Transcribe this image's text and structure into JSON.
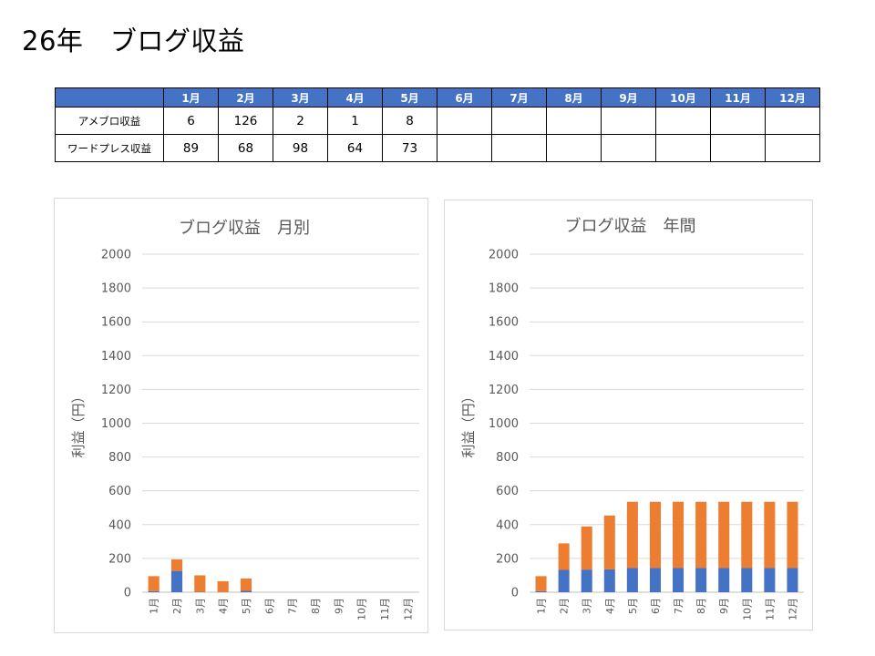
{
  "page": {
    "title": "26年　ブログ収益"
  },
  "table": {
    "columns": [
      "1月",
      "2月",
      "3月",
      "4月",
      "5月",
      "6月",
      "7月",
      "8月",
      "9月",
      "10月",
      "11月",
      "12月"
    ],
    "rows": [
      {
        "label": "アメブロ収益",
        "values": [
          "6",
          "126",
          "2",
          "1",
          "8",
          "",
          "",
          "",
          "",
          "",
          "",
          ""
        ]
      },
      {
        "label": "ワードプレス収益",
        "values": [
          "89",
          "68",
          "98",
          "64",
          "73",
          "",
          "",
          "",
          "",
          "",
          "",
          ""
        ]
      }
    ]
  },
  "chart_data": [
    {
      "type": "bar",
      "stacked": true,
      "title": "ブログ収益　月別",
      "ylabel": "利益（円）",
      "xlabel": "",
      "ylim": [
        0,
        2000
      ],
      "yticks": [
        0,
        200,
        400,
        600,
        800,
        1000,
        1200,
        1400,
        1600,
        1800,
        2000
      ],
      "grid": true,
      "categories": [
        "1月",
        "2月",
        "3月",
        "4月",
        "5月",
        "6月",
        "7月",
        "8月",
        "9月",
        "10月",
        "11月",
        "12月"
      ],
      "series": [
        {
          "values": [
            6,
            126,
            2,
            1,
            8,
            0,
            0,
            0,
            0,
            0,
            0,
            0
          ],
          "color": "#4472c4"
        },
        {
          "values": [
            89,
            68,
            98,
            64,
            73,
            0,
            0,
            0,
            0,
            0,
            0,
            0
          ],
          "color": "#ed7d31"
        }
      ]
    },
    {
      "type": "bar",
      "stacked": true,
      "title": "ブログ収益　年間",
      "ylabel": "利益（円）",
      "xlabel": "",
      "ylim": [
        0,
        2000
      ],
      "yticks": [
        0,
        200,
        400,
        600,
        800,
        1000,
        1200,
        1400,
        1600,
        1800,
        2000
      ],
      "grid": true,
      "categories": [
        "1月",
        "2月",
        "3月",
        "4月",
        "5月",
        "6月",
        "7月",
        "8月",
        "9月",
        "10月",
        "11月",
        "12月"
      ],
      "series": [
        {
          "values": [
            6,
            132,
            134,
            135,
            143,
            143,
            143,
            143,
            143,
            143,
            143,
            143
          ],
          "color": "#4472c4"
        },
        {
          "values": [
            89,
            157,
            255,
            319,
            392,
            392,
            392,
            392,
            392,
            392,
            392,
            392
          ],
          "color": "#ed7d31"
        }
      ]
    }
  ]
}
